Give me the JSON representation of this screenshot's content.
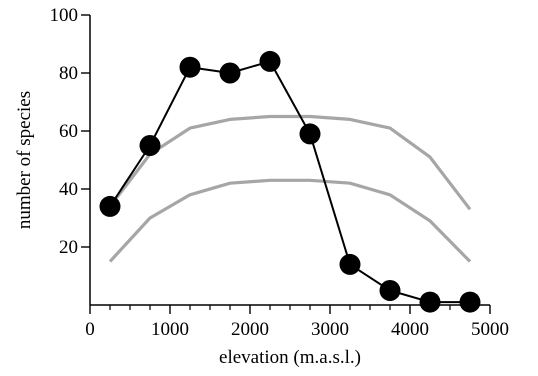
{
  "chart_data": {
    "type": "line",
    "title": "",
    "xlabel": "elevation (m.a.s.l.)",
    "ylabel": "number of species",
    "xlim": [
      0,
      5000
    ],
    "ylim": [
      0,
      100
    ],
    "x_ticks": [
      0,
      1000,
      2000,
      3000,
      4000,
      5000
    ],
    "y_ticks": [
      20,
      40,
      60,
      80,
      100
    ],
    "x_minor_step": 250,
    "grid": false,
    "legend": "none",
    "series": [
      {
        "style": "line-markers",
        "color": "#000000",
        "x": [
          250,
          750,
          1250,
          1750,
          2250,
          2750,
          3250,
          3750,
          4250,
          4750
        ],
        "y": [
          34,
          55,
          82,
          80,
          84,
          59,
          14,
          5,
          1,
          1
        ]
      },
      {
        "style": "line",
        "color": "#a6a6a6",
        "x": [
          250,
          750,
          1250,
          1750,
          2250,
          2750,
          3250,
          3750,
          4250,
          4750
        ],
        "y": [
          34,
          52,
          61,
          64,
          65,
          65,
          64,
          61,
          51,
          33
        ]
      },
      {
        "style": "line",
        "color": "#a6a6a6",
        "x": [
          250,
          750,
          1250,
          1750,
          2250,
          2750,
          3250,
          3750,
          4250,
          4750
        ],
        "y": [
          15,
          30,
          38,
          42,
          43,
          43,
          42,
          38,
          29,
          15
        ]
      }
    ]
  }
}
